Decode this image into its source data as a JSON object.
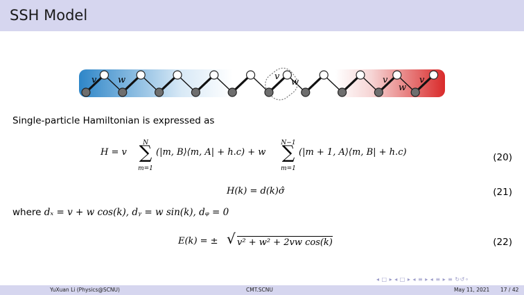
{
  "slide": {
    "title": "SSH Model"
  },
  "figure": {
    "labels": [
      "v",
      "w",
      "v",
      "w",
      "v",
      "w",
      "v"
    ]
  },
  "text": {
    "intro": "Single-particle Hamiltonian is expressed as",
    "where_prefix": "where",
    "where_dx": "dₓ = v + w cos(k),",
    "where_dy": "dᵧ = w sin(k),",
    "where_dz": "dᵩ = 0"
  },
  "equations": {
    "eq20_lhs": "H = v",
    "eq20_sum1_top": "N",
    "eq20_sum1_bottom": "m=1",
    "eq20_term1": "(|m, B⟩⟨m, A| + h.c) + w",
    "eq20_sum2_top": "N−1",
    "eq20_sum2_bottom": "m=1",
    "eq20_term2": "(|m + 1, A⟩⟨m, B| + h.c)",
    "eq20_number": "(20)",
    "eq21": "H(k) = d(k)σ̂",
    "eq21_number": "(21)",
    "eq22_lhs": "E(k) = ±",
    "eq22_radicand": "v² + w² + 2vw cos(k)",
    "eq22_number": "(22)"
  },
  "navigation": {
    "symbols": "◂ □ ▸ ◂ □ ▸ ◂ ≡ ▸ ◂ ≡ ▸  ≡  ↻↺∘"
  },
  "footer": {
    "author": "YuXuan Li  (Physics@SCNU)",
    "center": "CMT.SCNU",
    "date": "May 11, 2021",
    "page": "17 / 42"
  },
  "colors": {
    "title_bar": "#d6d6ef",
    "chain_blue": "#2e86c8",
    "chain_red": "#d92a2a",
    "site_open": "#ffffff",
    "site_filled": "#6e6e6e"
  }
}
